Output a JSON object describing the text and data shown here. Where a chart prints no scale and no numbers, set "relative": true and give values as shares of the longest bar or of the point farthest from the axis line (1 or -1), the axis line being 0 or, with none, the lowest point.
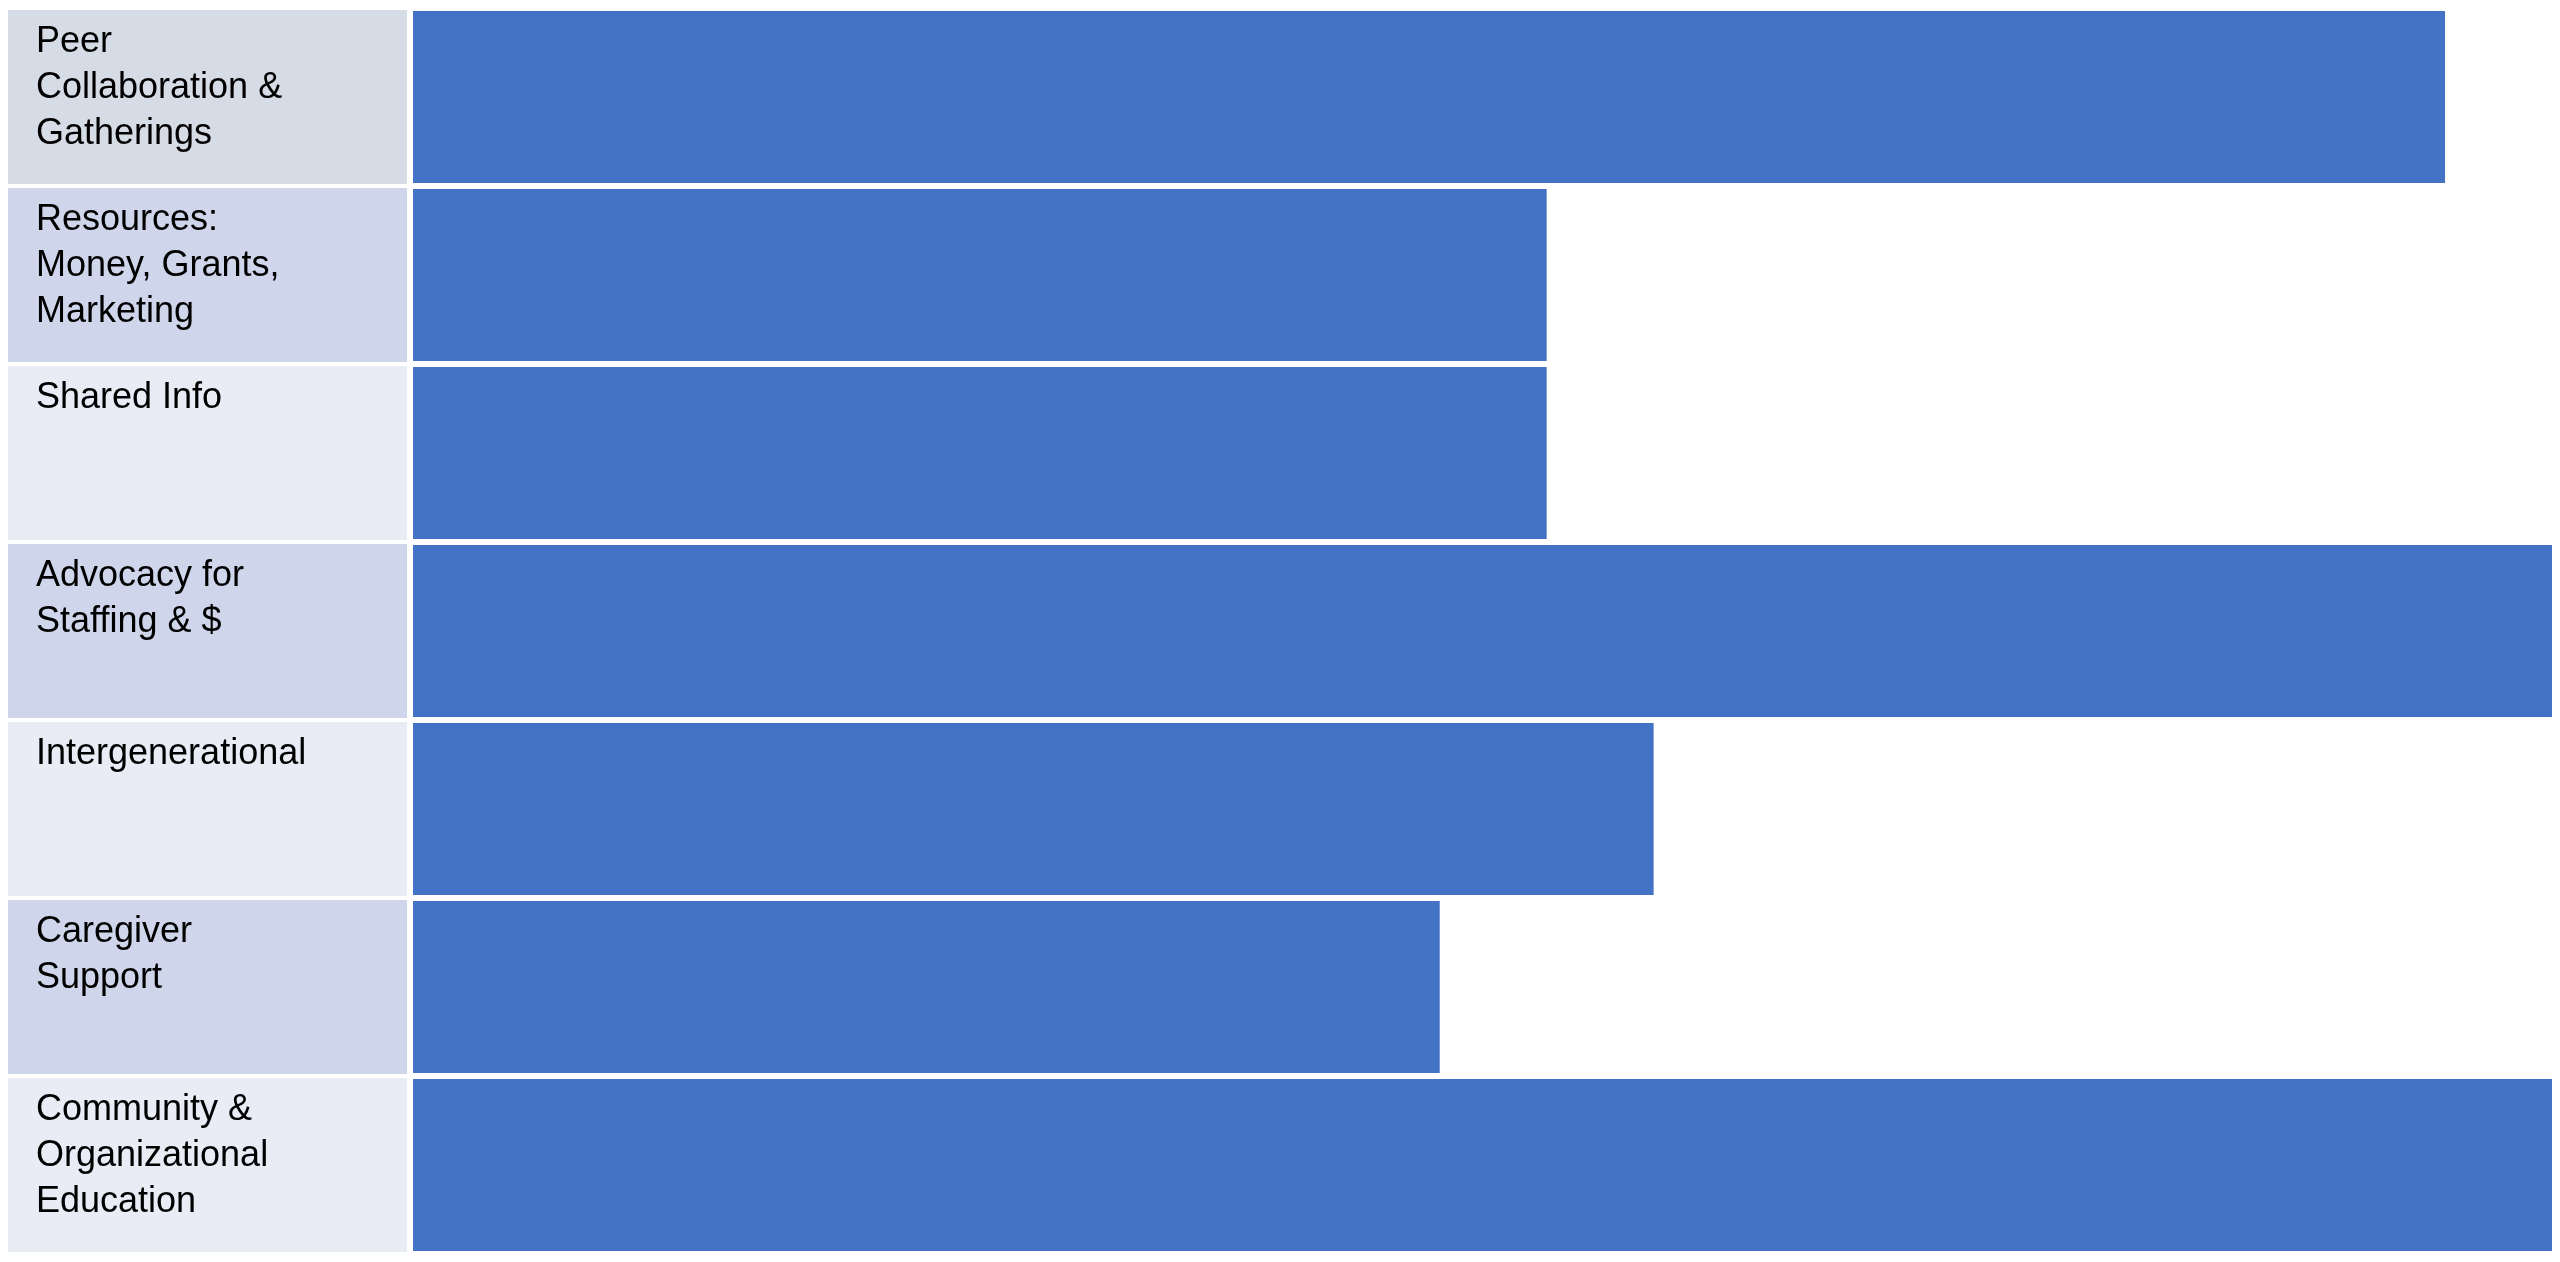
{
  "chart_data": {
    "type": "bar",
    "orientation": "horizontal",
    "relative": true,
    "color": "#4472c4",
    "categories": [
      "Peer Collaboration & Gatherings",
      "Resources: Money, Grants, Marketing",
      "Shared Info",
      "Advocacy for Staffing & $",
      "Intergenerational",
      "Caregiver Support",
      "Community & Organizational Education"
    ],
    "values": [
      0.95,
      0.53,
      0.53,
      1,
      0.58,
      0.48,
      1
    ]
  }
}
